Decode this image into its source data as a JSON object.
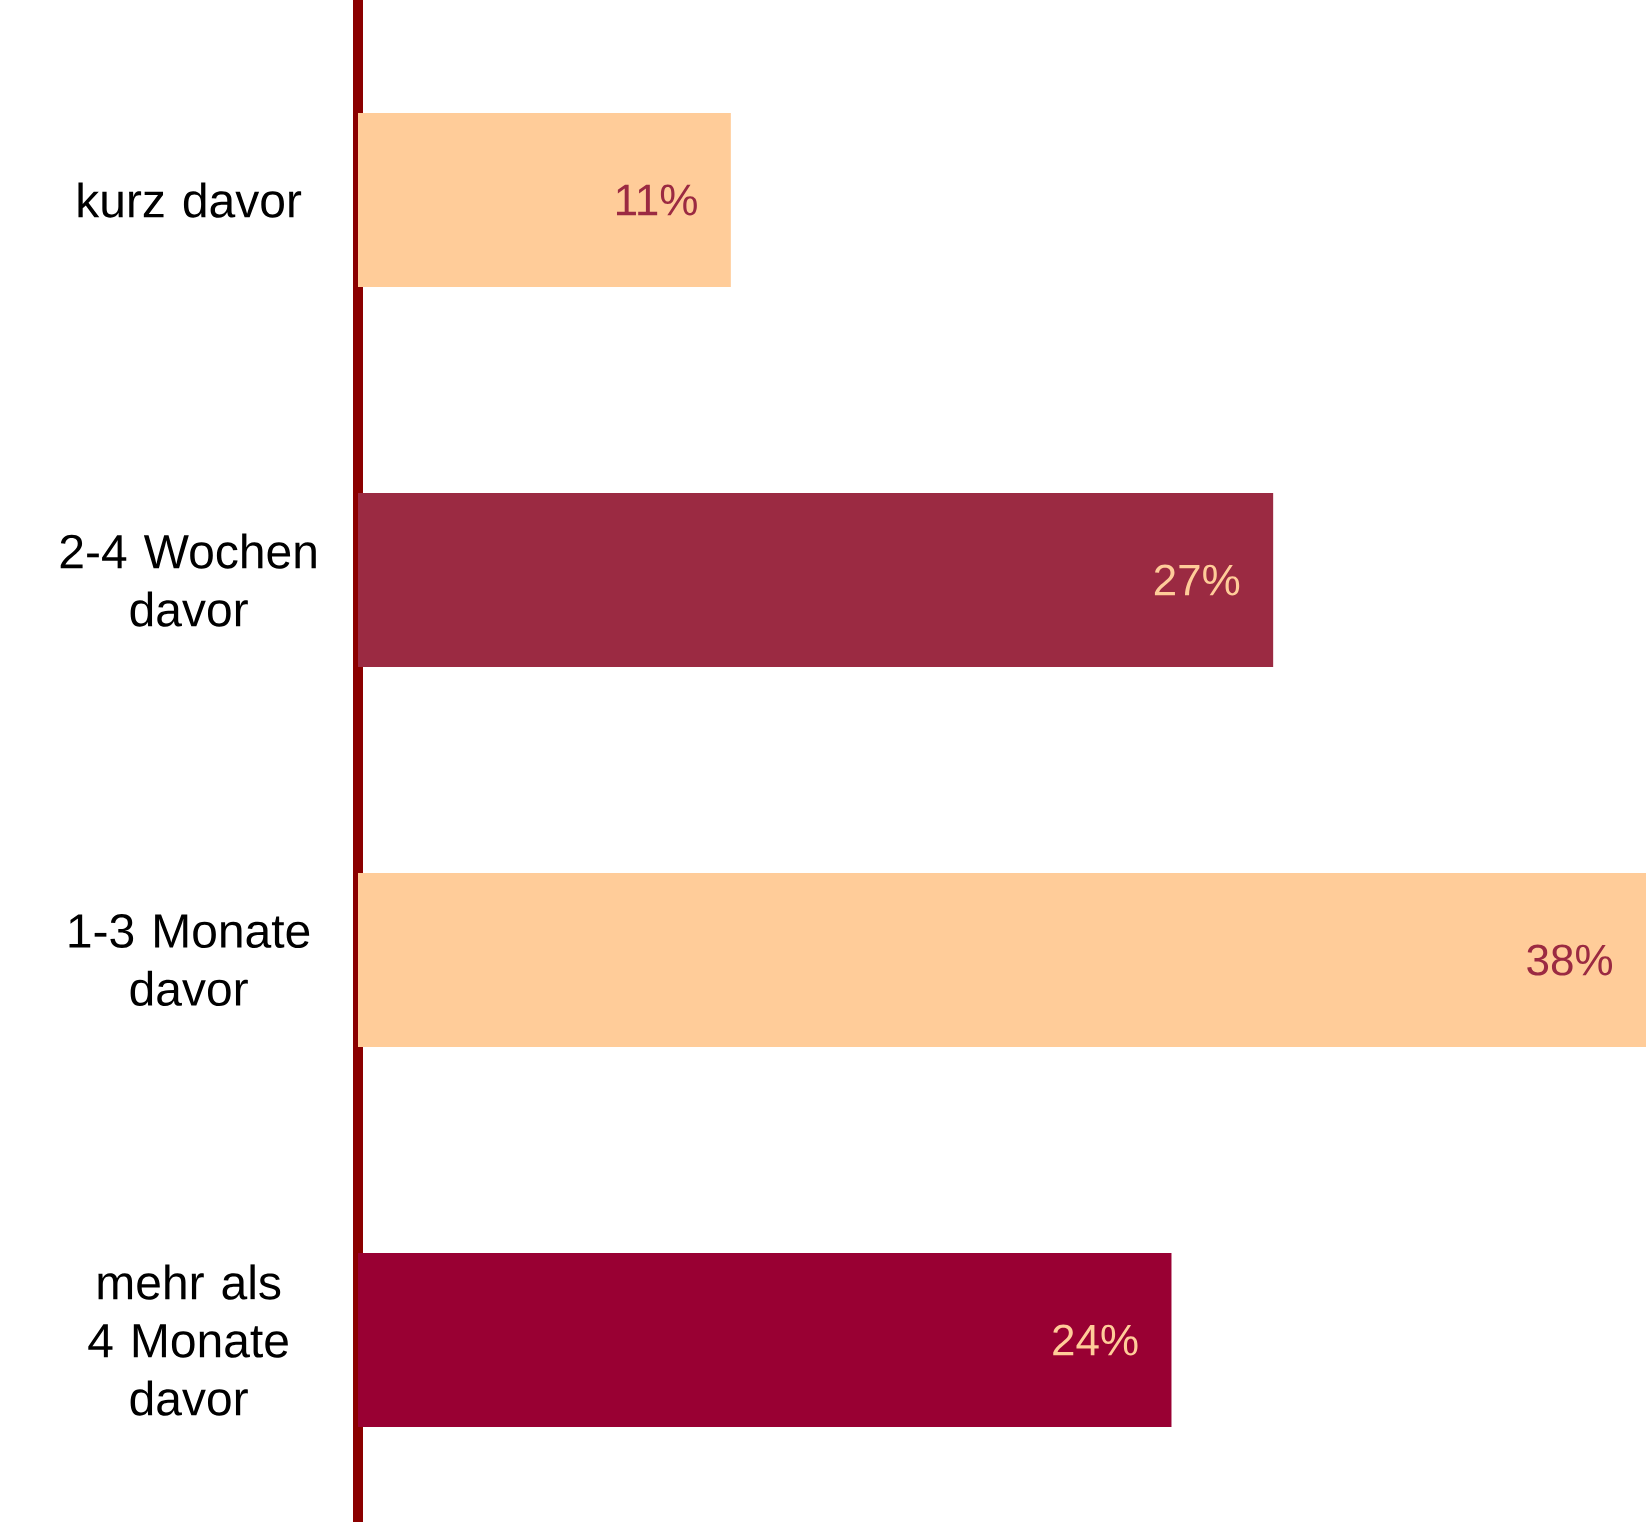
{
  "chart_data": {
    "type": "bar",
    "orientation": "horizontal",
    "categories": [
      "kurz davor",
      "2-4 Wochen davor",
      "1-3 Monate davor",
      "mehr als 4 Monate davor"
    ],
    "values": [
      11,
      27,
      38,
      24
    ],
    "colors": [
      "#ffcc99",
      "#9b2a42",
      "#ffcc99",
      "#990033"
    ],
    "value_labels": [
      "11%",
      "27%",
      "38%",
      "24%"
    ]
  }
}
